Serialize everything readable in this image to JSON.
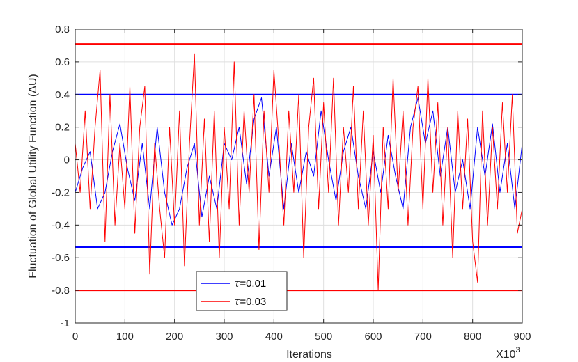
{
  "chart_data": {
    "type": "line",
    "xlabel": "Iterations",
    "x_multiplier_label": "X10",
    "x_multiplier_exp": "3",
    "ylabel": "Fluctuation of Global Utility Function (ΔU)",
    "xlim": [
      0,
      900
    ],
    "ylim": [
      -1,
      0.8
    ],
    "x_ticks": [
      0,
      100,
      200,
      300,
      400,
      500,
      600,
      700,
      800,
      900
    ],
    "y_ticks": [
      -1,
      -0.8,
      -0.6,
      -0.4,
      -0.2,
      0,
      0.2,
      0.4,
      0.6,
      0.8
    ],
    "x_tick_labels": [
      "0",
      "100",
      "200",
      "300",
      "400",
      "500",
      "600",
      "700",
      "800",
      "900"
    ],
    "y_tick_labels": [
      "-1",
      "-0.8",
      "-0.6",
      "-0.4",
      "-0.2",
      "0",
      "0.2",
      "0.4",
      "0.6",
      "0.8"
    ],
    "grid": true,
    "legend_position": "bottom-left",
    "series": [
      {
        "name": "τ=0.01",
        "legend_symbol": "τ",
        "legend_value": "=0.01",
        "color": "#0000ff",
        "bounds": [
          0.4,
          -0.535
        ],
        "x": [
          0,
          15,
          30,
          45,
          60,
          75,
          90,
          105,
          120,
          135,
          150,
          165,
          180,
          195,
          210,
          225,
          240,
          255,
          270,
          285,
          300,
          315,
          330,
          345,
          360,
          375,
          390,
          405,
          420,
          435,
          450,
          465,
          480,
          495,
          510,
          525,
          540,
          555,
          570,
          585,
          600,
          615,
          630,
          645,
          660,
          675,
          690,
          705,
          720,
          735,
          750,
          765,
          780,
          795,
          810,
          825,
          840,
          855,
          870,
          885,
          900
        ],
        "values": [
          -0.2,
          -0.05,
          0.05,
          -0.3,
          -0.2,
          0.05,
          0.22,
          -0.05,
          -0.25,
          0.1,
          -0.3,
          0.2,
          -0.2,
          -0.4,
          -0.3,
          -0.05,
          0.1,
          -0.35,
          -0.1,
          -0.3,
          0.1,
          0.0,
          0.2,
          -0.15,
          0.25,
          0.38,
          -0.1,
          0.2,
          -0.3,
          0.1,
          -0.2,
          0.05,
          -0.1,
          0.3,
          0.0,
          -0.25,
          0.05,
          0.2,
          -0.1,
          -0.3,
          0.05,
          -0.2,
          0.15,
          -0.1,
          -0.3,
          0.2,
          0.38,
          0.1,
          0.3,
          -0.1,
          0.2,
          -0.2,
          0.0,
          -0.3,
          0.2,
          -0.1,
          0.22,
          -0.2,
          0.1,
          -0.3,
          0.1
        ]
      },
      {
        "name": "τ=0.03",
        "legend_symbol": "τ",
        "legend_value": "=0.03",
        "color": "#ff0000",
        "bounds": [
          0.71,
          -0.8
        ],
        "x": [
          0,
          10,
          20,
          30,
          40,
          50,
          60,
          70,
          80,
          90,
          100,
          110,
          120,
          130,
          140,
          150,
          160,
          170,
          180,
          190,
          200,
          210,
          220,
          230,
          240,
          250,
          260,
          270,
          280,
          290,
          300,
          310,
          320,
          330,
          340,
          350,
          360,
          370,
          380,
          390,
          400,
          410,
          420,
          430,
          440,
          450,
          460,
          470,
          480,
          490,
          500,
          510,
          520,
          530,
          540,
          550,
          560,
          570,
          580,
          590,
          600,
          610,
          620,
          630,
          640,
          650,
          660,
          670,
          680,
          690,
          700,
          710,
          720,
          730,
          740,
          750,
          760,
          770,
          780,
          790,
          800,
          810,
          820,
          830,
          840,
          850,
          860,
          870,
          880,
          890,
          900
        ],
        "values": [
          0.1,
          -0.2,
          0.3,
          -0.3,
          0.2,
          0.55,
          -0.5,
          0.4,
          -0.4,
          0.1,
          -0.3,
          0.45,
          -0.45,
          0.2,
          0.45,
          -0.7,
          0.1,
          -0.3,
          -0.6,
          0.2,
          -0.4,
          0.3,
          -0.65,
          0.1,
          0.65,
          -0.4,
          0.25,
          -0.5,
          0.3,
          -0.6,
          0.2,
          -0.3,
          0.6,
          -0.4,
          0.3,
          -0.2,
          0.4,
          -0.55,
          0.3,
          -0.2,
          0.55,
          0.1,
          -0.4,
          0.3,
          -0.2,
          0.4,
          -0.6,
          0.2,
          0.5,
          -0.3,
          0.35,
          -0.2,
          0.5,
          -0.4,
          0.2,
          -0.2,
          0.45,
          -0.3,
          0.3,
          -0.4,
          0.15,
          -0.8,
          0.2,
          -0.3,
          0.5,
          -0.2,
          0.3,
          -0.4,
          0.2,
          0.45,
          -0.3,
          0.5,
          -0.2,
          0.35,
          -0.4,
          0.2,
          -0.6,
          0.3,
          -0.3,
          0.25,
          -0.5,
          -0.75,
          0.3,
          -0.4,
          0.2,
          -0.3,
          0.35,
          -0.2,
          0.4,
          -0.45,
          -0.3
        ]
      }
    ]
  }
}
